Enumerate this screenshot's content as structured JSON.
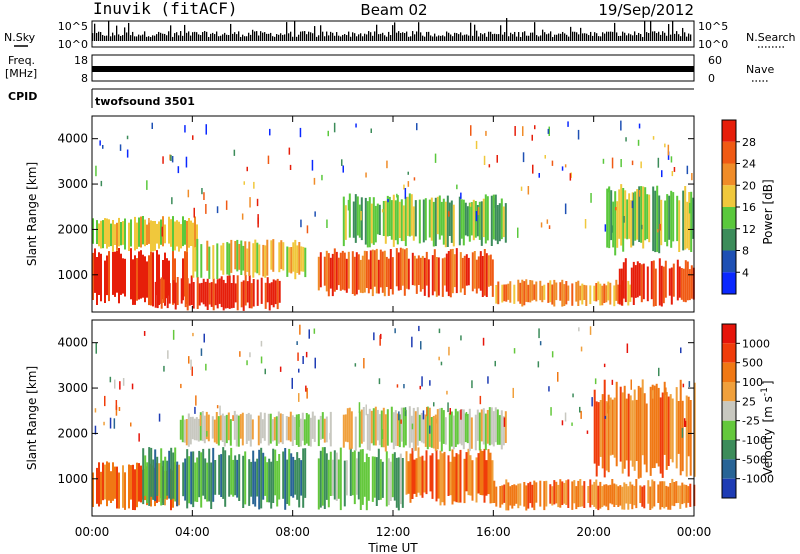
{
  "header": {
    "station": "Inuvik (fitACF)",
    "beam": "Beam 02",
    "date": "19/Sep/2012"
  },
  "strip_nsky": {
    "left_label": "N.Sky",
    "right_label": "N.Search",
    "ticks_left": [
      "10^5",
      "10^0"
    ],
    "ticks_right": [
      "10^5",
      "10^0"
    ]
  },
  "strip_freq": {
    "left_label_line1": "Freq.",
    "left_label_line2": "[MHz]",
    "right_label": "Nave",
    "ticks_left": [
      "18",
      "8"
    ],
    "ticks_right": [
      "60",
      "0"
    ]
  },
  "strip_cpid": {
    "left_label": "CPID",
    "program": "twofsound 3501"
  },
  "chart_data": [
    {
      "type": "heatmap",
      "parameter": "Power",
      "ylabel": "Slant Range [km]",
      "xlabel": "",
      "x_ticks": [
        "00:00",
        "04:00",
        "08:00",
        "12:00",
        "16:00",
        "20:00",
        "00:00"
      ],
      "y_ticks": [
        "1000",
        "2000",
        "3000",
        "4000"
      ],
      "ylim": [
        180,
        4500
      ],
      "xlim_hours": [
        0,
        24
      ],
      "colorbar_label": "Power [dB]",
      "colorbar_ticks": [
        "4",
        "8",
        "12",
        "16",
        "20",
        "24",
        "28"
      ],
      "colorbar_colors": [
        "#0a28ff",
        "#1e50b4",
        "#3c8c5a",
        "#5ac83c",
        "#f0c83c",
        "#f08c28",
        "#f05a14",
        "#e61e0a"
      ],
      "echo_regions": [
        {
          "t0": 0.0,
          "t1": 3.8,
          "r0": 300,
          "r1": 1600,
          "level": 7
        },
        {
          "t0": 0.0,
          "t1": 4.2,
          "r0": 1500,
          "r1": 2300,
          "level": 4
        },
        {
          "t0": 2.5,
          "t1": 7.5,
          "r0": 200,
          "r1": 1000,
          "level": 7
        },
        {
          "t0": 4.0,
          "t1": 8.5,
          "r0": 900,
          "r1": 1800,
          "level": 4
        },
        {
          "t0": 9.0,
          "t1": 16.0,
          "r0": 500,
          "r1": 1600,
          "level": 6
        },
        {
          "t0": 10.0,
          "t1": 16.5,
          "r0": 1600,
          "r1": 2800,
          "level": 3
        },
        {
          "t0": 16.0,
          "t1": 21.5,
          "r0": 300,
          "r1": 900,
          "level": 5
        },
        {
          "t0": 21.0,
          "t1": 24.0,
          "r0": 300,
          "r1": 1400,
          "level": 7
        },
        {
          "t0": 20.5,
          "t1": 24.0,
          "r0": 1400,
          "r1": 3000,
          "level": 3
        }
      ]
    },
    {
      "type": "heatmap",
      "parameter": "Velocity",
      "ylabel": "Slant Range [km]",
      "xlabel": "Time UT",
      "x_ticks": [
        "00:00",
        "04:00",
        "08:00",
        "12:00",
        "16:00",
        "20:00",
        "00:00"
      ],
      "y_ticks": [
        "1000",
        "2000",
        "3000",
        "4000"
      ],
      "ylim": [
        180,
        4500
      ],
      "xlim_hours": [
        0,
        24
      ],
      "colorbar_label": "Velocity [m s-1]",
      "colorbar_label_main": "Velocity",
      "colorbar_label_unit": "[m s",
      "colorbar_label_exp": "-1",
      "colorbar_label_close": "]",
      "colorbar_ticks": [
        "1000",
        "500",
        "100",
        "25",
        "-25",
        "-100",
        "-500",
        "-1000"
      ],
      "colorbar_colors": [
        "#1e3cb4",
        "#286496",
        "#3c8c5a",
        "#64c83c",
        "#c8c8c0",
        "#f0a03c",
        "#f07814",
        "#f03c0a",
        "#e6140a"
      ],
      "echo_regions": [
        {
          "t0": 0.0,
          "t1": 3.5,
          "r0": 300,
          "r1": 1400,
          "level": 6
        },
        {
          "t0": 2.0,
          "t1": 8.5,
          "r0": 300,
          "r1": 1700,
          "level": 2
        },
        {
          "t0": 3.5,
          "t1": 9.5,
          "r0": 1700,
          "r1": 2500,
          "level": 4
        },
        {
          "t0": 9.0,
          "t1": 12.5,
          "r0": 300,
          "r1": 1700,
          "level": 3
        },
        {
          "t0": 12.5,
          "t1": 16.0,
          "r0": 400,
          "r1": 1700,
          "level": 6
        },
        {
          "t0": 10.0,
          "t1": 16.5,
          "r0": 1600,
          "r1": 2600,
          "level": 4
        },
        {
          "t0": 16.0,
          "t1": 24.0,
          "r0": 300,
          "r1": 1000,
          "level": 6
        },
        {
          "t0": 20.0,
          "t1": 24.0,
          "r0": 1000,
          "r1": 3200,
          "level": 6
        }
      ]
    }
  ]
}
